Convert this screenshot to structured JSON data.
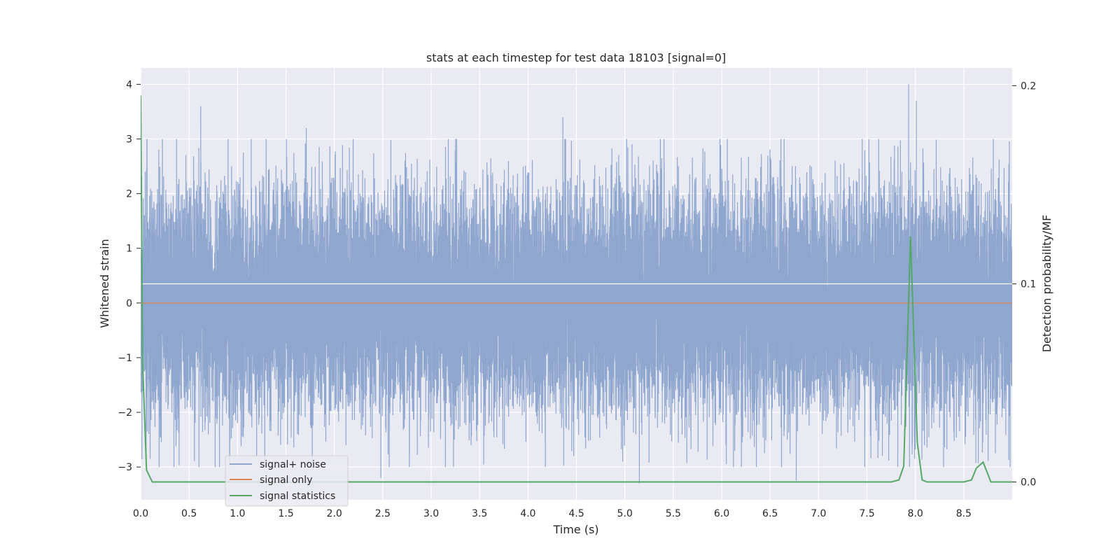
{
  "chart_data": {
    "type": "line",
    "title": "stats at each timestep for test data 18103 [signal=0]",
    "xlabel": "Time (s)",
    "ylabel": "Whitened strain",
    "y2label": "Detection probability/MF",
    "xlim": [
      0.0,
      9.0
    ],
    "ylim": [
      -3.6,
      4.3
    ],
    "y2lim": [
      -0.009,
      0.209
    ],
    "xticks": [
      "0.0",
      "0.5",
      "1.0",
      "1.5",
      "2.0",
      "2.5",
      "3.0",
      "3.5",
      "4.0",
      "4.5",
      "5.0",
      "5.5",
      "6.0",
      "6.5",
      "7.0",
      "7.5",
      "8.0",
      "8.5"
    ],
    "yticks": [
      "4",
      "3",
      "2",
      "1",
      "0",
      "−1",
      "−2",
      "−3"
    ],
    "y2ticks": [
      "0.2",
      "0.1",
      "0.0"
    ],
    "grid": true,
    "legend_position": "lower-left",
    "series": [
      {
        "name": "signal+ noise",
        "color": "#8fa6cf",
        "kind": "noise",
        "sample_rate": 2048,
        "std": 1.0,
        "notable_peaks": [
          {
            "x": 0.62,
            "y": 3.6
          },
          {
            "x": 1.71,
            "y": 3.2
          },
          {
            "x": 4.36,
            "y": 3.4
          },
          {
            "x": 7.93,
            "y": 4.0
          },
          {
            "x": 8.01,
            "y": 3.7
          },
          {
            "x": 5.15,
            "y": -3.3
          },
          {
            "x": 6.77,
            "y": -3.25
          },
          {
            "x": 2.48,
            "y": -3.2
          }
        ]
      },
      {
        "name": "signal only",
        "color": "#dd8452",
        "x": [
          0.0,
          9.0
        ],
        "y": [
          0.0,
          0.0
        ]
      },
      {
        "name": "signal statistics",
        "color": "#55a868",
        "axis": "right",
        "x": [
          0.0,
          0.02,
          0.06,
          0.12,
          0.5,
          1.0,
          2.0,
          3.0,
          4.0,
          5.0,
          6.0,
          7.0,
          7.5,
          7.75,
          7.83,
          7.88,
          7.95,
          8.02,
          8.07,
          8.12,
          8.5,
          8.58,
          8.63,
          8.7,
          8.78,
          8.9,
          9.0
        ],
        "y": [
          0.195,
          0.06,
          0.006,
          0.0,
          0.0,
          0.0,
          0.0,
          0.0,
          0.0,
          0.0,
          0.0,
          0.0,
          0.0,
          0.0,
          0.001,
          0.008,
          0.124,
          0.02,
          0.001,
          0.0,
          0.0,
          0.001,
          0.007,
          0.01,
          0.0,
          0.0,
          0.0
        ]
      }
    ],
    "white_hline_y2": 0.1
  }
}
